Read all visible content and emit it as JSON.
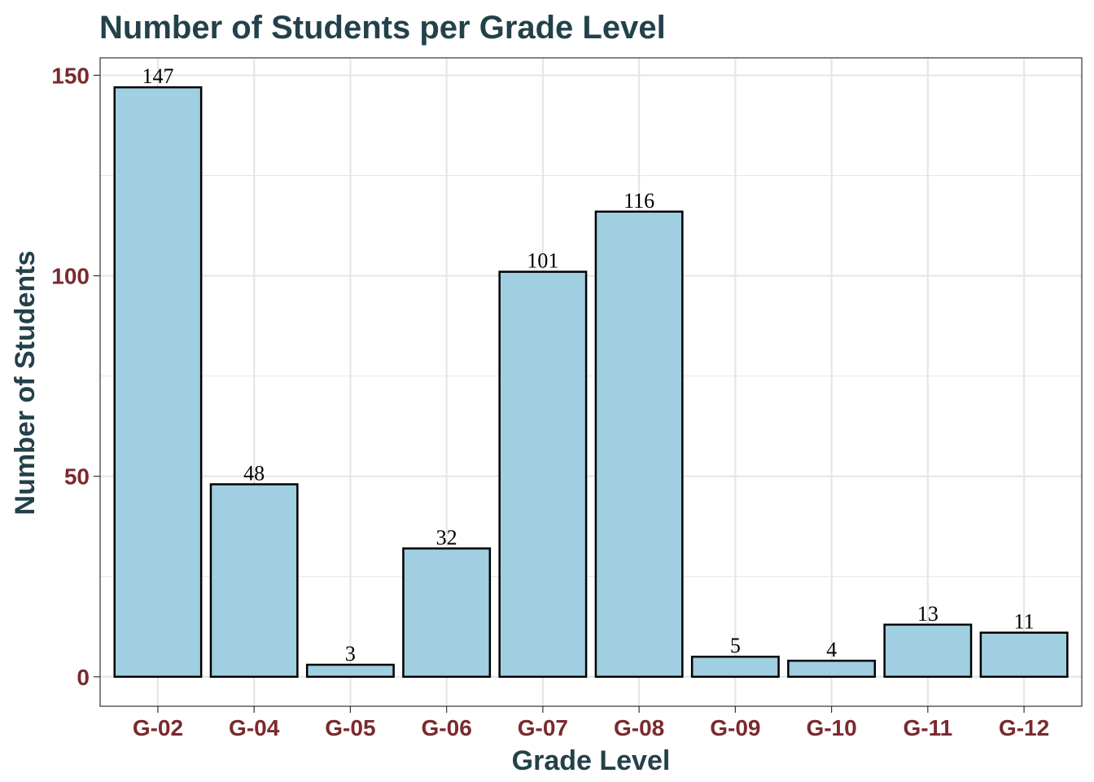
{
  "chart_data": {
    "type": "bar",
    "title": "Number of Students per Grade Level",
    "xlabel": "Grade Level",
    "ylabel": "Number of Students",
    "categories": [
      "G-02",
      "G-04",
      "G-05",
      "G-06",
      "G-07",
      "G-08",
      "G-09",
      "G-10",
      "G-11",
      "G-12"
    ],
    "values": [
      147,
      48,
      3,
      32,
      101,
      116,
      5,
      4,
      13,
      11
    ],
    "ylim": [
      -7.35,
      154.35
    ],
    "yticks": [
      0,
      50,
      100,
      150
    ],
    "grid": true,
    "legend": "none",
    "colors": {
      "bar_fill": "#9fcfe0",
      "bar_stroke": "#000000",
      "title": "#23414a",
      "axis_title": "#23414a",
      "tick_label": "#7a2a2e",
      "grid": "#e6e6e6",
      "panel_border": "#333333"
    }
  }
}
